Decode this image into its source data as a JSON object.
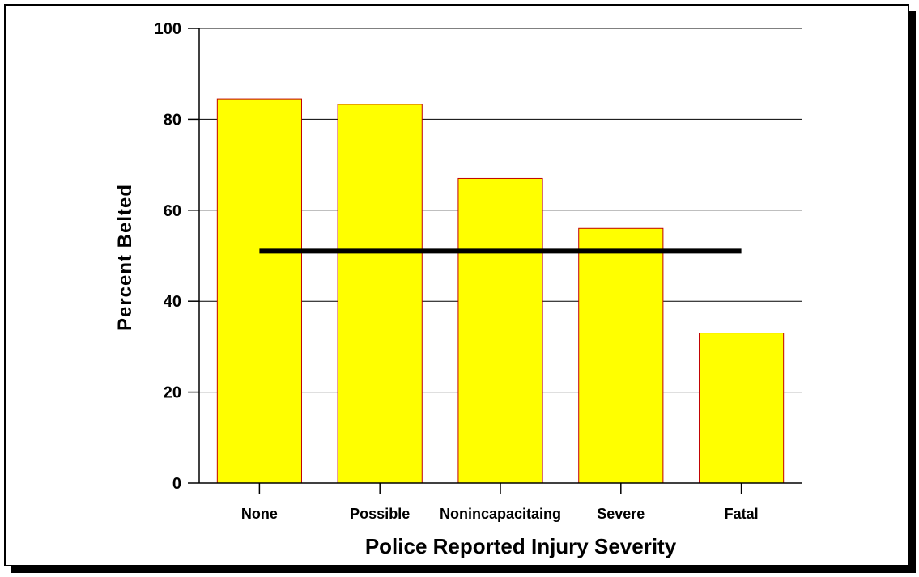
{
  "chart_data": {
    "type": "bar",
    "categories": [
      "None",
      "Possible",
      "Nonincapacitaing",
      "Severe",
      "Fatal"
    ],
    "values": [
      84.5,
      83.3,
      67,
      56,
      33
    ],
    "xlabel": "Police Reported Injury Severity",
    "ylabel": "Percent Belted",
    "ylim": [
      0,
      100
    ],
    "yticks": [
      0,
      20,
      40,
      60,
      80,
      100
    ],
    "grid": true,
    "reference_line": 51,
    "colors": {
      "bar_fill": "#ffff00",
      "bar_stroke": "#c00000",
      "reference_line": "#000000",
      "grid": "#000000"
    }
  }
}
